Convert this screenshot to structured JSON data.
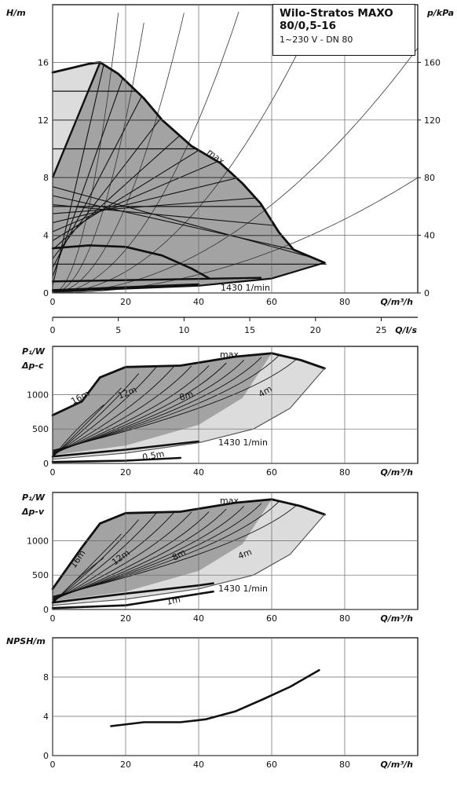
{
  "legend": {
    "title_line1": "Wilo-Stratos MAXO",
    "title_line2": "80/0,5-16",
    "title_line3": "1~230 V - DN 80"
  },
  "chart_data": [
    {
      "type": "line",
      "name": "head",
      "ylabel": "H/m",
      "ylabel2": "p/kPa",
      "xlabel": "Q/m³/h",
      "xlabel2": "Q/l/s",
      "xlim": [
        0,
        100
      ],
      "ylim": [
        0,
        20
      ],
      "y2lim": [
        0,
        200
      ],
      "x2lim": [
        0,
        27.78
      ],
      "xticks": [
        0,
        20,
        40,
        60,
        80
      ],
      "yticks": [
        0,
        4,
        8,
        12,
        16
      ],
      "y2ticks": [
        0,
        40,
        80,
        120,
        160
      ],
      "x2ticks": [
        0,
        5,
        10,
        15,
        20,
        25
      ],
      "max_label": "max.",
      "speed_label": "1430 1/min",
      "max_curve": [
        [
          0,
          15.3
        ],
        [
          5,
          15.6
        ],
        [
          10,
          15.9
        ],
        [
          13,
          16.0
        ],
        [
          18,
          15.2
        ],
        [
          25,
          13.5
        ],
        [
          30,
          12.0
        ],
        [
          38,
          10.2
        ],
        [
          46,
          9.0
        ],
        [
          52,
          7.6
        ],
        [
          57,
          6.2
        ],
        [
          62,
          4.2
        ],
        [
          66,
          3.0
        ],
        [
          74.5,
          2.1
        ]
      ],
      "envelope": [
        [
          0,
          0.1
        ],
        [
          40,
          0.5
        ],
        [
          60,
          1.0
        ],
        [
          74.5,
          2.1
        ]
      ],
      "light_region": [
        [
          0,
          8
        ],
        [
          0,
          15.3
        ],
        [
          13,
          16.0
        ]
      ],
      "min_curve": [
        [
          0,
          3.1
        ],
        [
          10,
          3.3
        ],
        [
          20,
          3.2
        ],
        [
          30,
          2.6
        ],
        [
          38,
          1.7
        ],
        [
          43,
          1.0
        ]
      ],
      "const_curves": [
        {
          "from": [
            0,
            0.2
          ],
          "to": [
            40,
            0.6
          ]
        },
        {
          "from": [
            0,
            0.8
          ],
          "to": [
            57,
            1.05
          ]
        }
      ]
    },
    {
      "type": "line",
      "name": "power_dp_c",
      "ylabel": "P₁/W",
      "ylabel_sub": "Δp-c",
      "xlabel": "Q/m³/h",
      "xlim": [
        0,
        100
      ],
      "ylim": [
        0,
        1700
      ],
      "xticks": [
        0,
        20,
        40,
        60,
        80
      ],
      "yticks": [
        0,
        500,
        1000
      ],
      "max_label": "max.",
      "speed_label": "1430 1/min",
      "curve_labels": [
        "16m",
        "12m",
        "8m",
        "4m",
        "0,5m"
      ],
      "max_curve": [
        [
          0,
          700
        ],
        [
          8,
          900
        ],
        [
          13,
          1250
        ],
        [
          20,
          1400
        ],
        [
          35,
          1420
        ],
        [
          50,
          1550
        ],
        [
          60,
          1600
        ],
        [
          68,
          1500
        ],
        [
          74.5,
          1380
        ]
      ],
      "lower_curve": [
        [
          0,
          60
        ],
        [
          20,
          150
        ],
        [
          40,
          300
        ],
        [
          55,
          500
        ],
        [
          65,
          800
        ],
        [
          74.5,
          1380
        ]
      ],
      "speed_curve": [
        [
          0,
          100
        ],
        [
          20,
          200
        ],
        [
          40,
          320
        ]
      ],
      "min_curve": [
        [
          0,
          20
        ],
        [
          20,
          40
        ],
        [
          35,
          80
        ]
      ]
    },
    {
      "type": "line",
      "name": "power_dp_v",
      "ylabel": "P₁/W",
      "ylabel_sub": "Δp-v",
      "xlabel": "Q/m³/h",
      "xlim": [
        0,
        100
      ],
      "ylim": [
        0,
        1700
      ],
      "xticks": [
        0,
        20,
        40,
        60,
        80
      ],
      "yticks": [
        0,
        500,
        1000
      ],
      "max_label": "max.",
      "speed_label": "1430 1/min",
      "curve_labels": [
        "16m",
        "12m",
        "8m",
        "4m",
        "1m"
      ],
      "max_curve": [
        [
          0,
          300
        ],
        [
          8,
          900
        ],
        [
          13,
          1250
        ],
        [
          20,
          1400
        ],
        [
          35,
          1420
        ],
        [
          50,
          1550
        ],
        [
          60,
          1600
        ],
        [
          68,
          1500
        ],
        [
          74.5,
          1380
        ]
      ],
      "lower_curve": [
        [
          0,
          60
        ],
        [
          20,
          150
        ],
        [
          40,
          300
        ],
        [
          55,
          500
        ],
        [
          65,
          800
        ],
        [
          74.5,
          1380
        ]
      ],
      "speed_curve": [
        [
          0,
          100
        ],
        [
          20,
          230
        ],
        [
          40,
          350
        ],
        [
          44,
          380
        ]
      ],
      "min_curve": [
        [
          0,
          20
        ],
        [
          20,
          60
        ],
        [
          44,
          260
        ]
      ]
    },
    {
      "type": "line",
      "name": "npsh",
      "ylabel": "NPSH/m",
      "xlabel": "Q/m³/h",
      "xlim": [
        0,
        100
      ],
      "ylim": [
        0,
        12
      ],
      "xticks": [
        0,
        20,
        40,
        60,
        80
      ],
      "yticks": [
        0,
        4,
        8
      ],
      "curve": [
        [
          16,
          3.0
        ],
        [
          25,
          3.4
        ],
        [
          35,
          3.4
        ],
        [
          42,
          3.7
        ],
        [
          50,
          4.5
        ],
        [
          58,
          5.8
        ],
        [
          65,
          7.0
        ],
        [
          73,
          8.7
        ]
      ]
    }
  ]
}
